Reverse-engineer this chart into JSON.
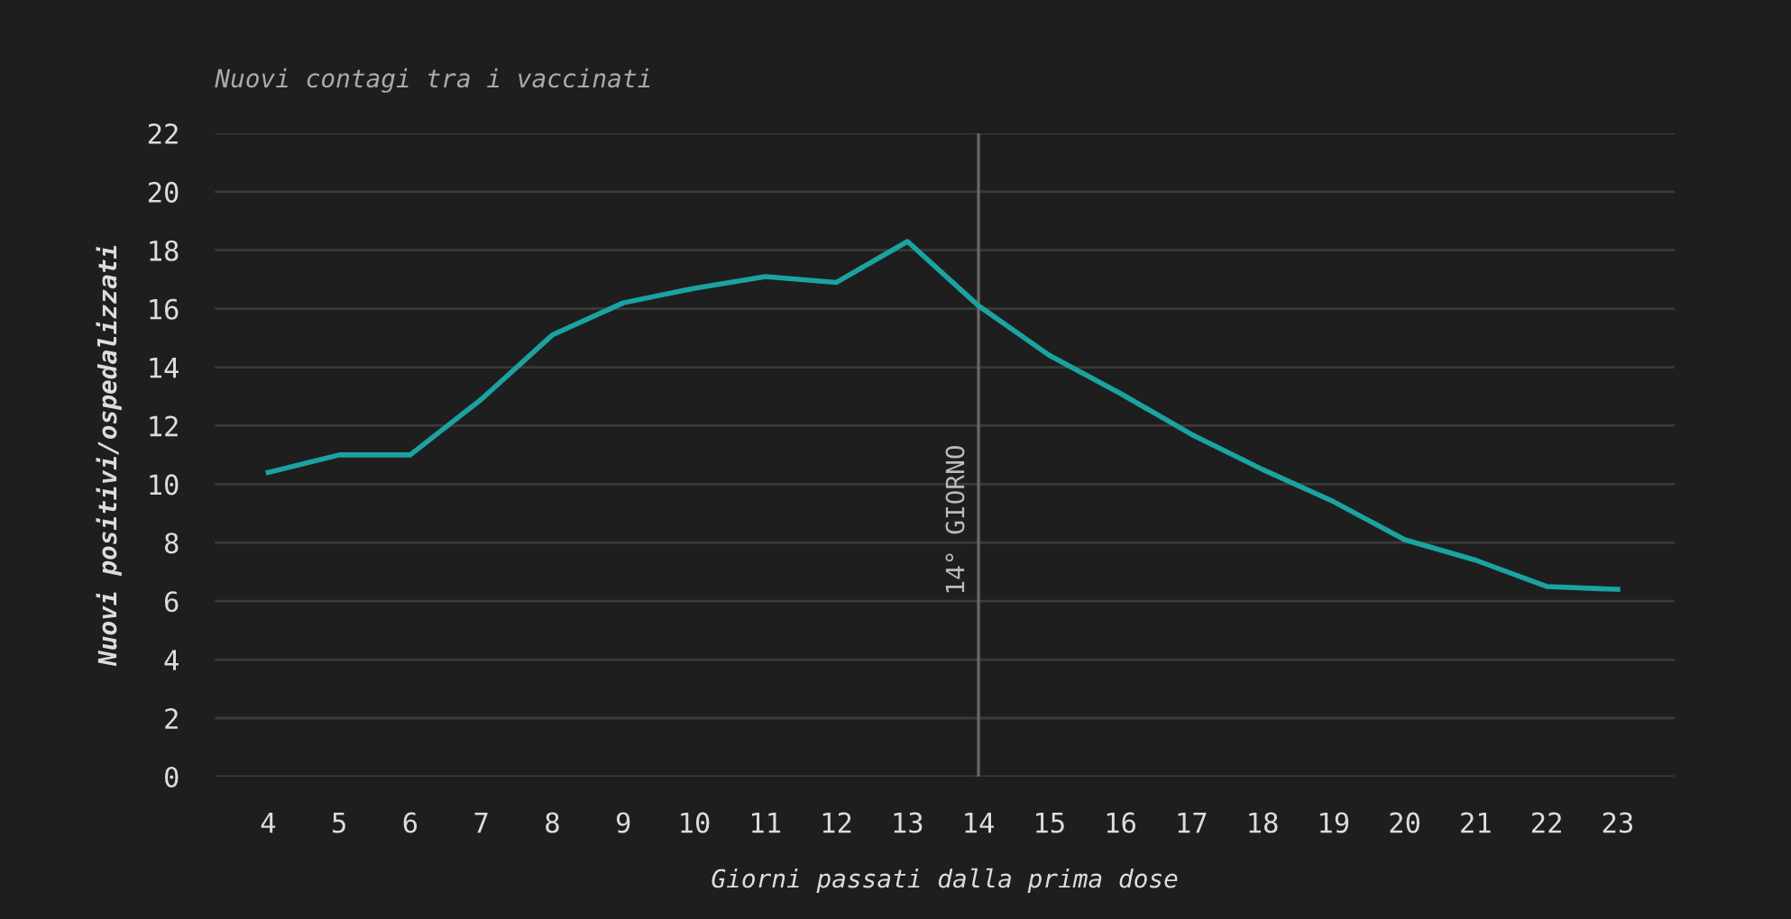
{
  "chart_data": {
    "type": "line",
    "title": "Nuovi contagi tra i vaccinati",
    "xlabel": "Giorni passati dalla prima dose",
    "ylabel": "Nuovi positivi/ospedalizzati",
    "categories": [
      "4",
      "5",
      "6",
      "7",
      "8",
      "9",
      "10",
      "11",
      "12",
      "13",
      "14",
      "15",
      "16",
      "17",
      "18",
      "19",
      "20",
      "21",
      "22",
      "23"
    ],
    "series": [
      {
        "color": "#1aa3a0",
        "values": [
          10.4,
          11.0,
          11.0,
          12.9,
          15.1,
          16.2,
          16.7,
          17.1,
          16.9,
          18.3,
          16.1,
          14.4,
          13.1,
          11.7,
          10.5,
          9.4,
          8.1,
          7.4,
          6.5,
          6.4
        ]
      }
    ],
    "ylim": [
      0,
      22
    ],
    "yticks": [
      0,
      2,
      4,
      6,
      8,
      10,
      12,
      14,
      16,
      18,
      20,
      22
    ],
    "ref_lines": [
      {
        "axis": "x",
        "value": "14",
        "label": "14° GIORNO",
        "color": "#666666"
      }
    ],
    "grid": "y",
    "legend": false,
    "marker": "none",
    "line_style": "solid"
  }
}
